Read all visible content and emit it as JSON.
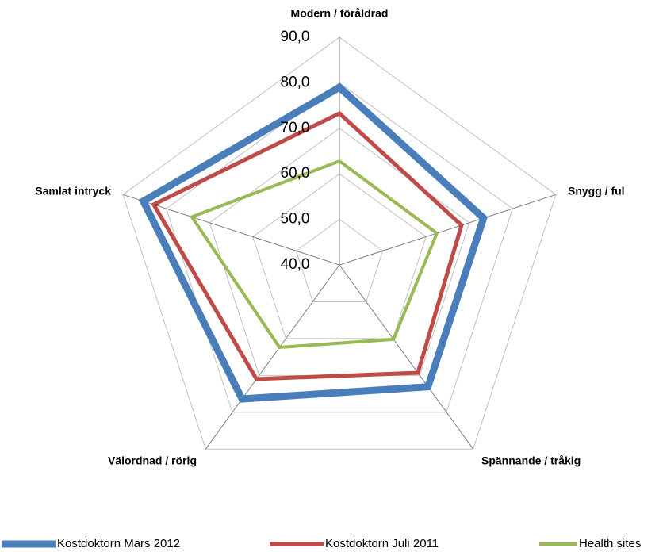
{
  "chart_data": {
    "type": "radar",
    "categories": [
      "Modern / föråldrad",
      "Snygg / ful",
      "Spännande / tråkig",
      "Välordnad / rörig",
      "Samlat intryck"
    ],
    "series": [
      {
        "name": "Kostdoktorn Mars 2012",
        "color": "#4a7ebb",
        "values": [
          79.0,
          73.3,
          73.1,
          76.4,
          85.3
        ]
      },
      {
        "name": "Kostdoktorn Juli 2011",
        "color": "#be4b48",
        "values": [
          73.3,
          68.2,
          69.3,
          71.0,
          82.9
        ]
      },
      {
        "name": "Health sites",
        "color": "#98b954",
        "values": [
          62.8,
          62.5,
          60.2,
          62.4,
          74.1
        ]
      }
    ],
    "ylim": [
      40,
      90
    ],
    "yticks": [
      {
        "value": 40,
        "label": "40,0"
      },
      {
        "value": 50,
        "label": "50,0"
      },
      {
        "value": 60,
        "label": "60,0"
      },
      {
        "value": 70,
        "label": "70,0"
      },
      {
        "value": 80,
        "label": "80,0"
      },
      {
        "value": 90,
        "label": "90,0"
      }
    ],
    "grid": true,
    "legend": "bottom"
  }
}
